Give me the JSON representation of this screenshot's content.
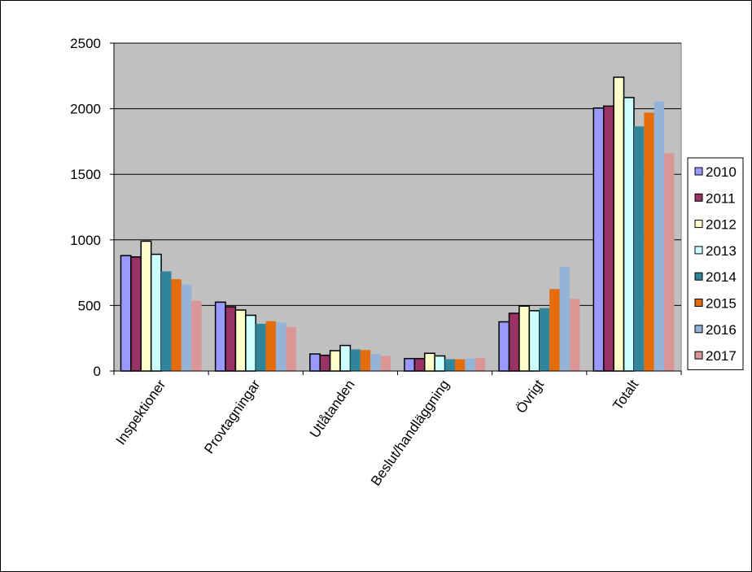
{
  "chart_data": {
    "type": "bar",
    "title": "",
    "xlabel": "",
    "ylabel": "",
    "ylim": [
      0,
      2500
    ],
    "yticks": [
      "0",
      "500",
      "1000",
      "1500",
      "2000",
      "2500"
    ],
    "grid": true,
    "legend_position": "right",
    "plot_background": "#c0c0c0",
    "categories": [
      "Inspektioner",
      "Provtagningar",
      "Utlåtanden",
      "Beslut/handläggning",
      "Övrigt",
      "Totalt"
    ],
    "series": [
      {
        "name": "2010",
        "color": "#9999ff",
        "values": [
          880,
          525,
          130,
          95,
          375,
          2005
        ]
      },
      {
        "name": "2011",
        "color": "#993366",
        "values": [
          870,
          490,
          120,
          95,
          440,
          2020
        ]
      },
      {
        "name": "2012",
        "color": "#ffffcc",
        "values": [
          990,
          465,
          155,
          135,
          495,
          2240
        ]
      },
      {
        "name": "2013",
        "color": "#ccffff",
        "values": [
          890,
          425,
          195,
          115,
          460,
          2085
        ]
      },
      {
        "name": "2014",
        "color": "#31859b",
        "values": [
          760,
          360,
          165,
          90,
          480,
          1865
        ]
      },
      {
        "name": "2015",
        "color": "#e46c0a",
        "values": [
          700,
          380,
          160,
          90,
          625,
          1970
        ]
      },
      {
        "name": "2016",
        "color": "#95b3d7",
        "values": [
          660,
          370,
          130,
          95,
          795,
          2055
        ]
      },
      {
        "name": "2017",
        "color": "#d99694",
        "values": [
          535,
          335,
          115,
          100,
          550,
          1660
        ]
      }
    ]
  }
}
